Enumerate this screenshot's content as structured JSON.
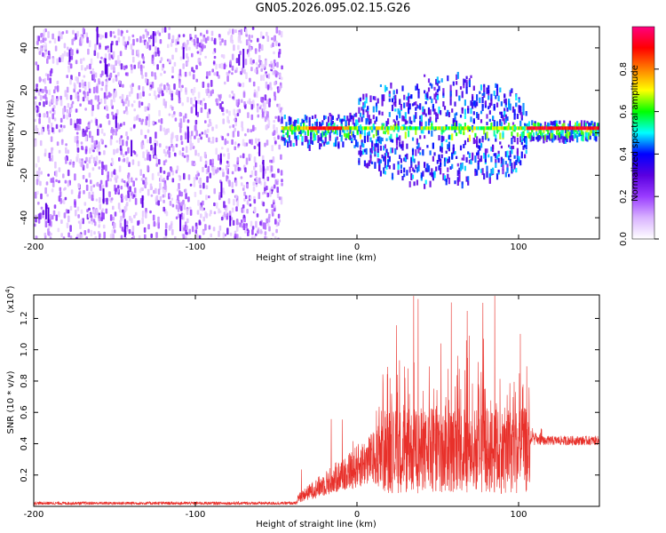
{
  "title": "GN05.2026.095.02.15.G26",
  "chart_data": [
    {
      "type": "heatmap",
      "name": "spectrogram",
      "xlabel": "Height of straight line (km)",
      "ylabel": "Frequency (Hz)",
      "xlim": [
        -200,
        150
      ],
      "ylim": [
        -50,
        50
      ],
      "xticks": [
        -200,
        -100,
        0,
        100
      ],
      "yticks": [
        -40,
        -20,
        0,
        20,
        40
      ],
      "colorbar": {
        "label": "Normalized spectral amplitude",
        "range": [
          0,
          1
        ],
        "ticks": [
          0.0,
          0.2,
          0.4,
          0.6,
          0.8
        ],
        "tick_labels": [
          "0.0",
          "0.2",
          "0.4",
          "0.6",
          "0.8"
        ],
        "colors": [
          "#ffffff",
          "#d9b3ff",
          "#9a3cff",
          "#5a00e0",
          "#0000ff",
          "#00ffff",
          "#00ff00",
          "#ffff00",
          "#ff8000",
          "#ff0000",
          "#ff0080"
        ]
      },
      "regions": [
        {
          "x_range": [
            -200,
            -47
          ],
          "description": "noise",
          "amplitude": 0.15
        },
        {
          "x_range": [
            -47,
            150
          ],
          "center_freq_hz": 2,
          "peak_amplitude": 0.95
        }
      ]
    },
    {
      "type": "line",
      "name": "snr",
      "xlabel": "Height of straight line (km)",
      "ylabel": "SNR (10 * v/v)",
      "yscale_label": "(x10",
      "yscale_exp": "4",
      "yscale_close": ")",
      "xlim": [
        -200,
        150
      ],
      "ylim": [
        0,
        1.35
      ],
      "xticks": [
        -200,
        -100,
        0,
        100
      ],
      "yticks": [
        0.2,
        0.4,
        0.6,
        0.8,
        1.0,
        1.2
      ],
      "ytick_labels": [
        "0.2",
        "0.4",
        "0.6",
        "0.8",
        "1.0",
        "1.2"
      ],
      "color": "#e8302a",
      "segments": [
        {
          "x": [
            -200,
            -37
          ],
          "level": 0.02
        },
        {
          "x": [
            -37,
            12
          ],
          "level_start": 0.05,
          "level_end": 0.32
        },
        {
          "x": [
            12,
            107
          ],
          "level": 0.38,
          "max": 1.35
        },
        {
          "x": [
            107,
            150
          ],
          "level": 0.42
        }
      ]
    }
  ]
}
